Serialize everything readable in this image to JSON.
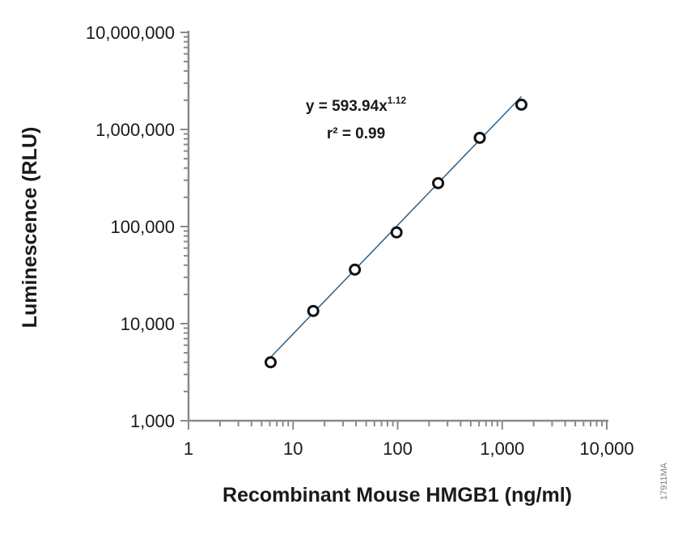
{
  "chart_data": {
    "type": "scatter",
    "xlabel": "Recombinant Mouse HMGB1 (ng/ml)",
    "ylabel": "Luminescence (RLU)",
    "x_scale": "log",
    "y_scale": "log",
    "xlim": [
      1,
      10000
    ],
    "ylim": [
      1000,
      10000000
    ],
    "x_ticks": [
      1,
      10,
      100,
      1000,
      10000
    ],
    "x_tick_labels": [
      "1",
      "10",
      "100",
      "1,000",
      "10,000"
    ],
    "y_ticks": [
      1000,
      10000,
      100000,
      1000000,
      10000000
    ],
    "y_tick_labels": [
      "1,000",
      "10,000",
      "100,000",
      "1,000,000",
      "10,000,000"
    ],
    "grid": false,
    "series": [
      {
        "x": [
          6.1,
          15.6,
          39,
          97.7,
          244,
          610,
          1526
        ],
        "y": [
          4000,
          13500,
          36000,
          87000,
          280000,
          820000,
          1800000
        ]
      }
    ],
    "fit": {
      "type": "power",
      "coefficient": 593.94,
      "exponent": 1.12,
      "equation_prefix": "y = 593.94x",
      "equation_exponent": "1.12",
      "r2_text": "r² = 0.99"
    },
    "colors": {
      "fit_line": "#2c5f87",
      "axis": "#8a8a8a",
      "marker": "#111111"
    }
  },
  "figure_code": "17911MA"
}
